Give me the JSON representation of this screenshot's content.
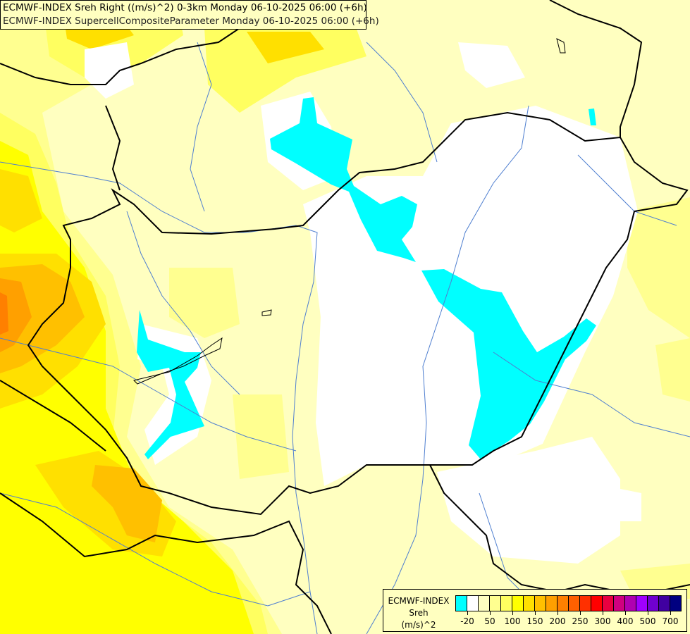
{
  "title": {
    "line1": "ECMWF-INDEX Sreh Right ((m/s)^2) 0-3km Monday 06-10-2025 06:00 (+6h)",
    "line2": "ECMWF-INDEX SupercellCompositeParameter Monday 06-10-2025 06:00 (+6h)"
  },
  "legend": {
    "source": "ECMWF-INDEX",
    "variable": "Sreh",
    "unit": "(m/s)^2",
    "colors": [
      "#00ffff",
      "#ffffff",
      "#ffffc0",
      "#ffff90",
      "#ffff60",
      "#ffff00",
      "#ffe000",
      "#ffc000",
      "#ffa000",
      "#ff8000",
      "#ff6000",
      "#ff3000",
      "#ff0000",
      "#e80040",
      "#d00080",
      "#b000b0",
      "#a000ff",
      "#7000d0",
      "#4000a0",
      "#000080"
    ],
    "tick_labels": [
      "-20",
      "50",
      "100",
      "150",
      "200",
      "250",
      "300",
      "400",
      "500",
      "700"
    ]
  },
  "map_colors": {
    "border": "#000000",
    "river": "#4f7fd0"
  }
}
